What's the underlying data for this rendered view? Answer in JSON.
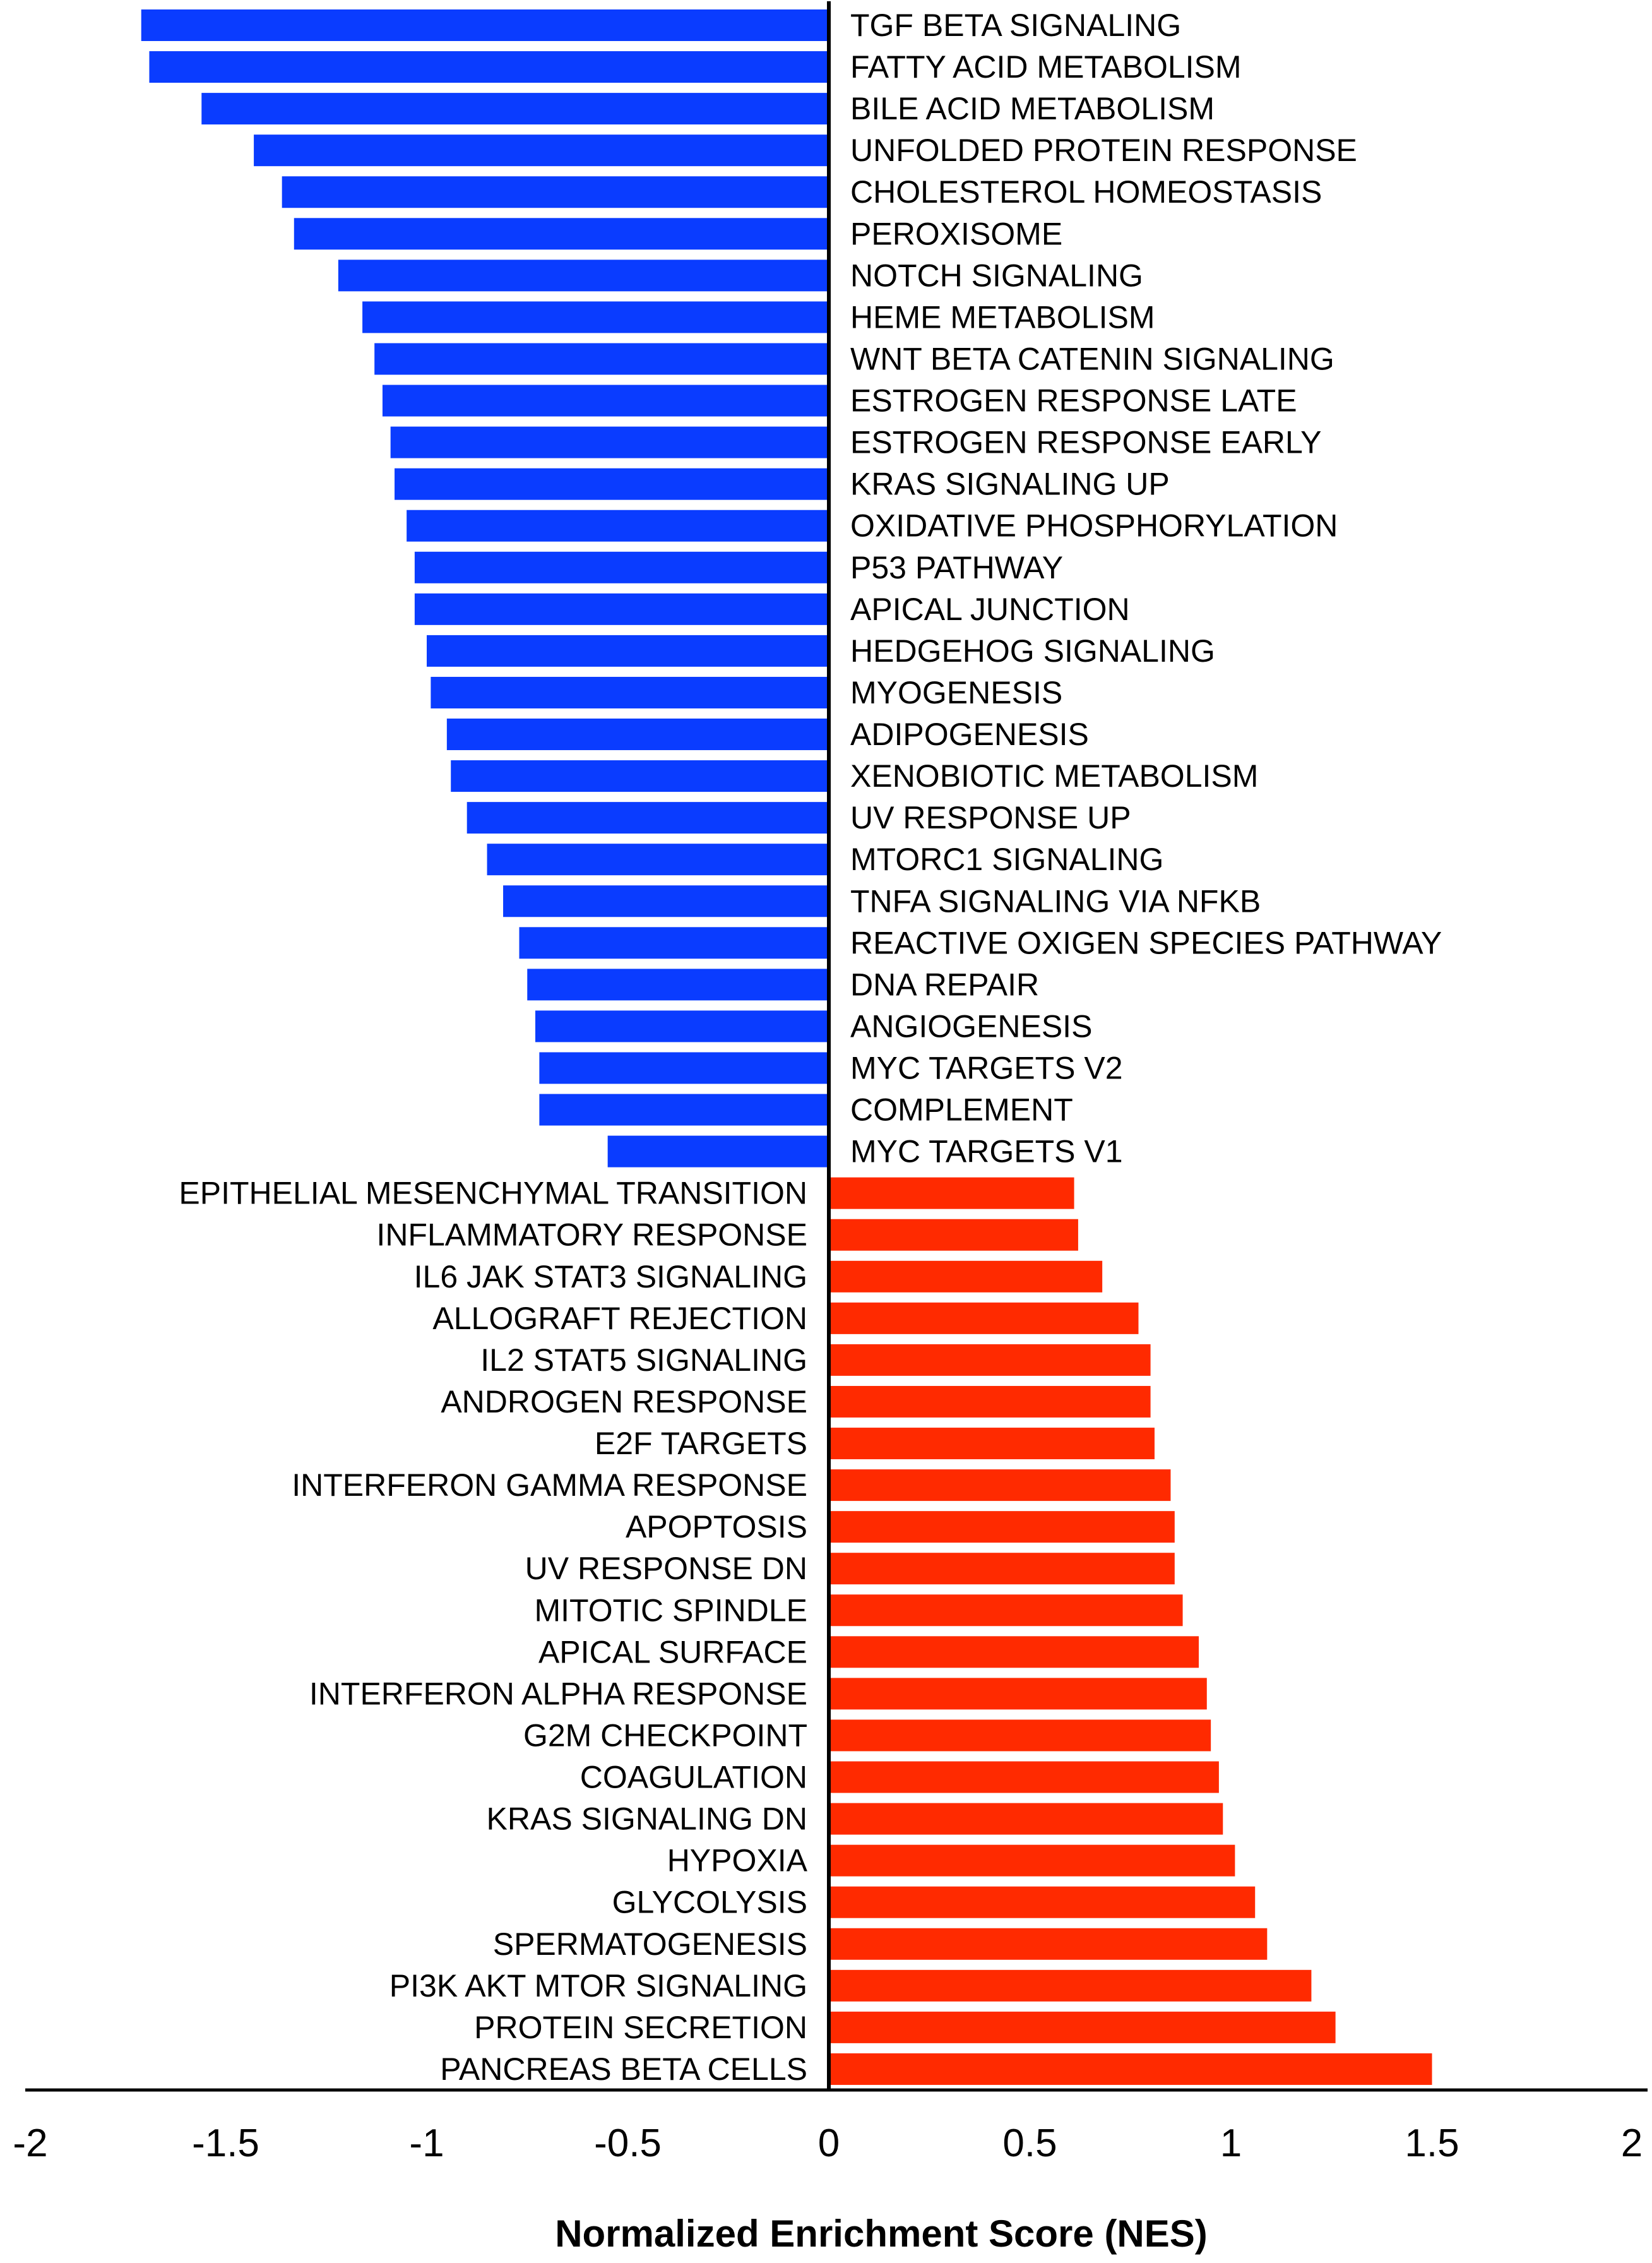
{
  "chart_data": {
    "type": "bar",
    "orientation": "horizontal",
    "xlabel": "Normalized Enrichment Score (NES)",
    "xlim": [
      -2,
      2
    ],
    "xticks": [
      -2,
      -1.5,
      -1,
      -0.5,
      0,
      0.5,
      1,
      1.5,
      2
    ],
    "xtick_labels": [
      "-2",
      "-1.5",
      "-1",
      "-0.5",
      "0",
      "0.5",
      "1",
      "1.5",
      "2"
    ],
    "grid": false,
    "colors": {
      "negative": "#0a3cff",
      "positive": "#ff2a00",
      "axis": "#000000"
    },
    "categories": [
      "TGF BETA SIGNALING",
      "FATTY ACID METABOLISM",
      "BILE ACID METABOLISM",
      "UNFOLDED PROTEIN RESPONSE",
      "CHOLESTEROL HOMEOSTASIS",
      "PEROXISOME",
      "NOTCH SIGNALING",
      "HEME METABOLISM",
      "WNT BETA CATENIN SIGNALING",
      "ESTROGEN RESPONSE LATE",
      "ESTROGEN RESPONSE EARLY",
      "KRAS SIGNALING UP",
      "OXIDATIVE PHOSPHORYLATION",
      "P53 PATHWAY",
      "APICAL JUNCTION",
      "HEDGEHOG SIGNALING",
      "MYOGENESIS",
      "ADIPOGENESIS",
      "XENOBIOTIC METABOLISM",
      "UV RESPONSE UP",
      "MTORC1 SIGNALING",
      "TNFA SIGNALING VIA NFKB",
      "REACTIVE OXIGEN SPECIES PATHWAY",
      "DNA REPAIR",
      "ANGIOGENESIS",
      "MYC TARGETS V2",
      "COMPLEMENT",
      "MYC TARGETS V1",
      "EPITHELIAL MESENCHYMAL TRANSITION",
      "INFLAMMATORY RESPONSE",
      "IL6 JAK STAT3 SIGNALING",
      "ALLOGRAFT REJECTION",
      "IL2 STAT5 SIGNALING",
      "ANDROGEN RESPONSE",
      "E2F TARGETS",
      "INTERFERON GAMMA RESPONSE",
      "APOPTOSIS",
      "UV RESPONSE DN",
      "MITOTIC  SPINDLE",
      "APICAL SURFACE",
      "INTERFERON ALPHA RESPONSE",
      "G2M CHECKPOINT",
      "COAGULATION",
      "KRAS SIGNALING DN",
      "HYPOXIA",
      "GLYCOLYSIS",
      "SPERMATOGENESIS",
      "PI3K AKT MTOR SIGNALING",
      "PROTEIN SECRETION",
      "PANCREAS BETA CELLS"
    ],
    "values": [
      -1.71,
      -1.69,
      -1.56,
      -1.43,
      -1.36,
      -1.33,
      -1.22,
      -1.16,
      -1.13,
      -1.11,
      -1.09,
      -1.08,
      -1.05,
      -1.03,
      -1.03,
      -1.0,
      -0.99,
      -0.95,
      -0.94,
      -0.9,
      -0.85,
      -0.81,
      -0.77,
      -0.75,
      -0.73,
      -0.72,
      -0.72,
      -0.55,
      0.61,
      0.62,
      0.68,
      0.77,
      0.8,
      0.8,
      0.81,
      0.85,
      0.86,
      0.86,
      0.88,
      0.92,
      0.94,
      0.95,
      0.97,
      0.98,
      1.01,
      1.06,
      1.09,
      1.2,
      1.26,
      1.5
    ]
  }
}
